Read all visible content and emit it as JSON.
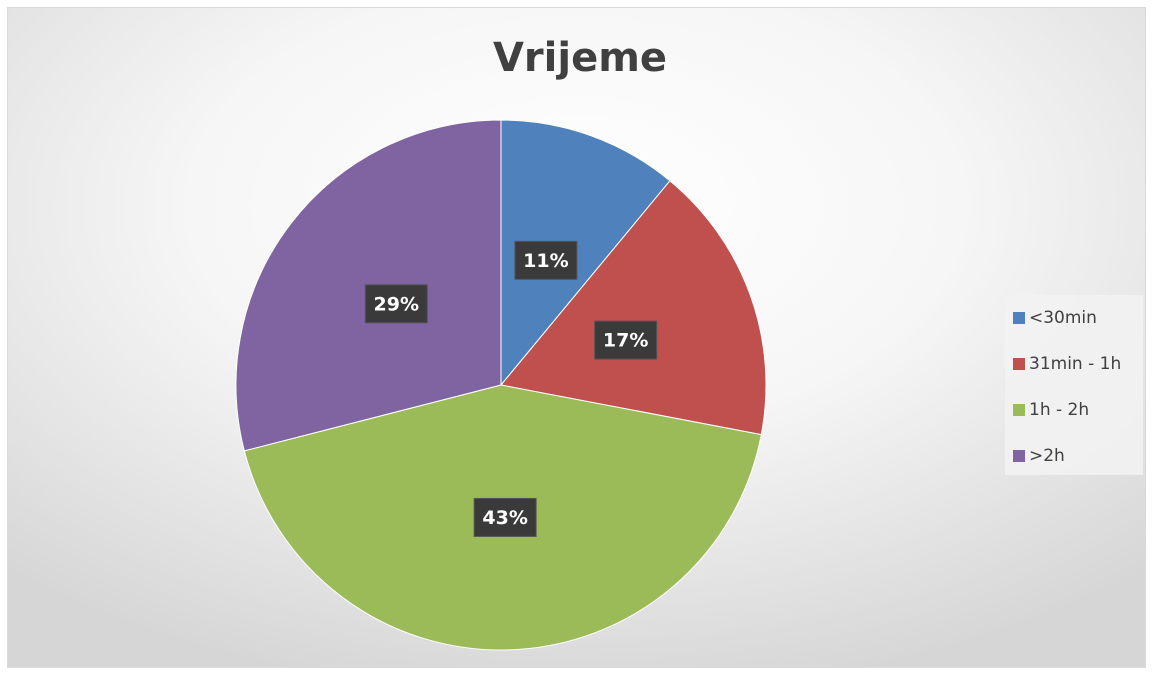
{
  "chart_data": {
    "type": "pie",
    "title": "Vrijeme",
    "categories": [
      "<30min",
      "31min - 1h",
      "1h - 2h",
      ">2h"
    ],
    "values": [
      11,
      17,
      43,
      29
    ],
    "value_labels": [
      "11%",
      "17%",
      "43%",
      "29%"
    ],
    "colors": [
      "#4f81bd",
      "#c0504d",
      "#9bbb59",
      "#8064a2"
    ],
    "legend": "right"
  }
}
